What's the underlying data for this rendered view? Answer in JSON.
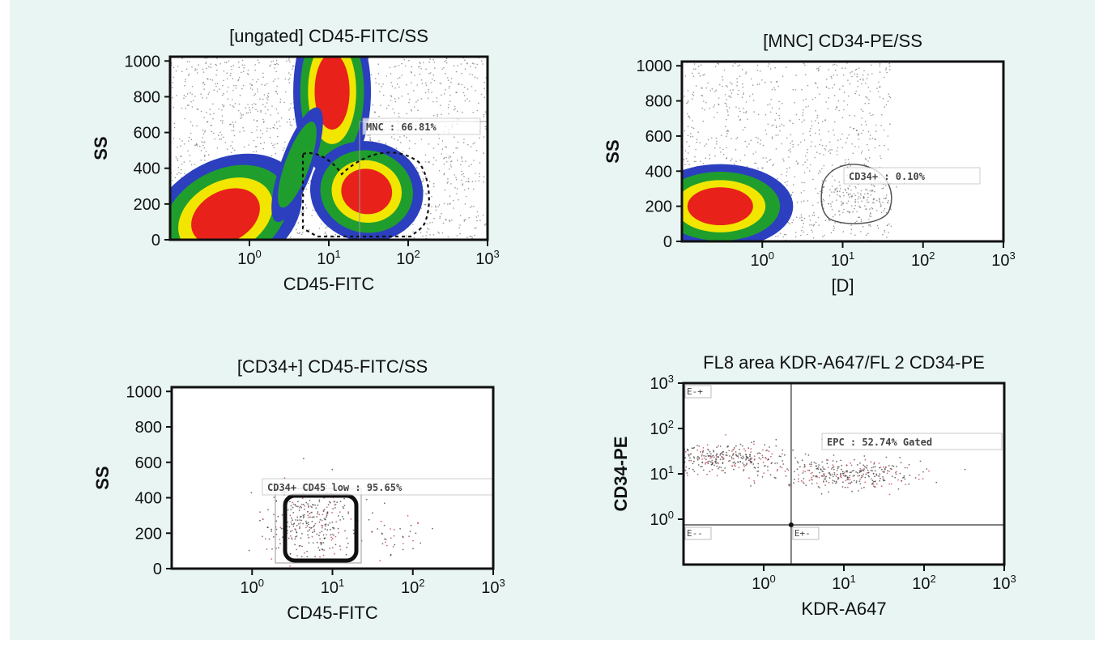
{
  "colors": {
    "background": "#e8f5f3",
    "low": "#2b3fbf",
    "mid": "#1f9e2d",
    "high": "#f2e600",
    "peak": "#e8211a",
    "dots": "#333333",
    "gate": "#444444"
  },
  "chart_data": [
    {
      "type": "scatter",
      "title": "[ungated] CD45-FITC/SS",
      "xlabel": "CD45-FITC",
      "ylabel": "SS",
      "x_scale": "log",
      "xlim": [
        0.1,
        1000
      ],
      "ylim": [
        0,
        1024
      ],
      "x_ticks": [
        {
          "base": "10",
          "exp": "0"
        },
        {
          "base": "10",
          "exp": "1"
        },
        {
          "base": "10",
          "exp": "2"
        },
        {
          "base": "10",
          "exp": "3"
        }
      ],
      "y_ticks": [
        "0",
        "200",
        "400",
        "600",
        "800",
        "1000"
      ],
      "plot_style": "density",
      "populations": [
        {
          "x": 0.5,
          "y": 130,
          "level": "peak"
        },
        {
          "x": 11,
          "y": 830,
          "level": "peak"
        },
        {
          "x": 30,
          "y": 270,
          "level": "peak"
        },
        {
          "x": 4,
          "y": 420,
          "level": "mid"
        }
      ],
      "gate_label": "MNC : 66.81%"
    },
    {
      "type": "scatter",
      "title": "[MNC] CD34-PE/SS",
      "xlabel": "[D]",
      "ylabel": "SS",
      "x_scale": "log",
      "xlim": [
        0.1,
        1000
      ],
      "ylim": [
        0,
        1024
      ],
      "x_ticks": [
        {
          "base": "10",
          "exp": "0"
        },
        {
          "base": "10",
          "exp": "1"
        },
        {
          "base": "10",
          "exp": "2"
        },
        {
          "base": "10",
          "exp": "3"
        }
      ],
      "y_ticks": [
        "0",
        "200",
        "400",
        "600",
        "800",
        "1000"
      ],
      "plot_style": "density",
      "populations": [
        {
          "x": 0.3,
          "y": 200,
          "level": "peak"
        }
      ],
      "gate_label": "CD34+ : 0.10%"
    },
    {
      "type": "scatter",
      "title": "[CD34+] CD45-FITC/SS",
      "xlabel": "CD45-FITC",
      "ylabel": "SS",
      "x_scale": "log",
      "xlim": [
        0.1,
        1000
      ],
      "ylim": [
        0,
        1024
      ],
      "x_ticks": [
        {
          "base": "10",
          "exp": "0"
        },
        {
          "base": "10",
          "exp": "1"
        },
        {
          "base": "10",
          "exp": "2"
        },
        {
          "base": "10",
          "exp": "3"
        }
      ],
      "y_ticks": [
        "0",
        "200",
        "400",
        "600",
        "800",
        "1000"
      ],
      "plot_style": "dots",
      "populations": [
        {
          "x": 5,
          "y": 260,
          "level": "dots"
        },
        {
          "x": 60,
          "y": 190,
          "level": "sparse"
        }
      ],
      "gate_label": "CD34+ CD45 low : 95.65%"
    },
    {
      "type": "scatter",
      "title": "FL8 area KDR-A647/FL 2 CD34-PE",
      "xlabel": "KDR-A647",
      "ylabel": "CD34-PE",
      "x_scale": "log",
      "y_scale": "log",
      "xlim": [
        0.1,
        1000
      ],
      "ylim": [
        0.1,
        1000
      ],
      "x_ticks": [
        {
          "base": "10",
          "exp": "0"
        },
        {
          "base": "10",
          "exp": "1"
        },
        {
          "base": "10",
          "exp": "2"
        },
        {
          "base": "10",
          "exp": "3"
        }
      ],
      "y_ticks": [
        {
          "base": "10",
          "exp": "0"
        },
        {
          "base": "10",
          "exp": "1"
        },
        {
          "base": "10",
          "exp": "2"
        },
        {
          "base": "10",
          "exp": "3"
        }
      ],
      "plot_style": "dots",
      "quadrant_cross": {
        "x": 2.2,
        "y": 0.75
      },
      "quadrant_labels": [
        "E-+",
        "E--",
        "E+-"
      ],
      "populations": [
        {
          "x": 0.3,
          "y": 22,
          "level": "dots"
        },
        {
          "x": 12,
          "y": 10,
          "level": "dots"
        }
      ],
      "gate_label": "EPC : 52.74% Gated"
    }
  ]
}
